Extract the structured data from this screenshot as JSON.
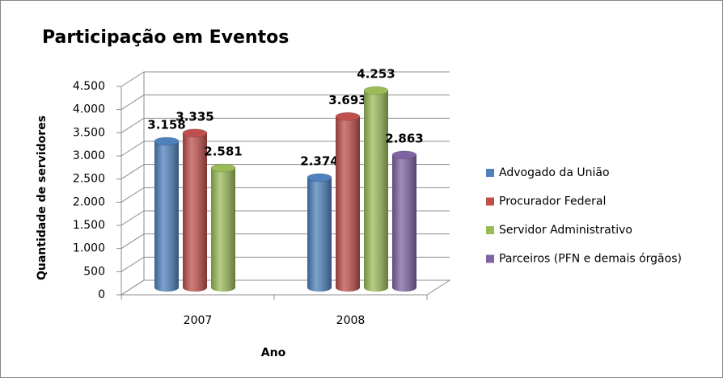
{
  "chart_data": {
    "type": "bar",
    "title": "Participação em Eventos",
    "x_label": "Ano",
    "y_label": "Quantidade de servidores",
    "categories": [
      "2007",
      "2008"
    ],
    "series": [
      {
        "name": "Advogado da União",
        "color": "#4f81bd",
        "values": [
          3158,
          2374
        ],
        "value_labels": [
          "3.158",
          "2.374"
        ]
      },
      {
        "name": "Procurador Federal",
        "color": "#c0504d",
        "values": [
          3335,
          3693
        ],
        "value_labels": [
          "3.335",
          "3.693"
        ]
      },
      {
        "name": "Servidor Administrativo",
        "color": "#9bbb59",
        "values": [
          2581,
          4253
        ],
        "value_labels": [
          "2.581",
          "4.253"
        ]
      },
      {
        "name": "Parceiros (PFN e demais órgãos)",
        "color": "#8064a2",
        "values": [
          null,
          2863
        ],
        "value_labels": [
          null,
          "2.863"
        ]
      }
    ],
    "ylim": [
      0,
      4500
    ],
    "yticks": [
      0,
      500,
      {
        "value": 1000,
        "label": "1.000"
      },
      {
        "value": 1500,
        "label": "1.500"
      },
      {
        "value": 2000,
        "label": "2.000"
      },
      {
        "value": 2500,
        "label": "2.500"
      },
      {
        "value": 3000,
        "label": "3.000"
      },
      {
        "value": 3500,
        "label": "3.500"
      },
      {
        "value": 4000,
        "label": "4.000"
      },
      {
        "value": 4500,
        "label": "4.500"
      }
    ],
    "grid": true,
    "legend": "right"
  }
}
